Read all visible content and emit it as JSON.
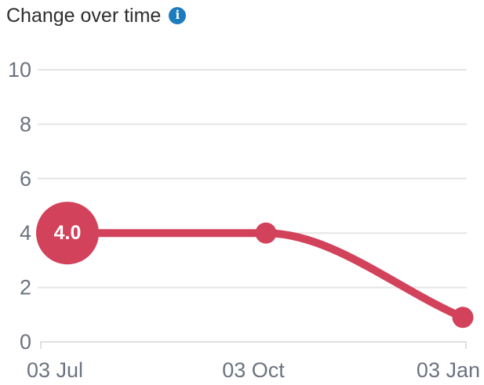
{
  "header": {
    "title": "Change over time",
    "info_icon_glyph": "i"
  },
  "colors": {
    "line": "#d2425b",
    "point": "#d2425b",
    "bubble_label": "#ffffff",
    "grid": "#e5e5e5",
    "axis_domain": "#e0e0e0",
    "axis_tick": "#dcdcdc",
    "axis_text": "#6b7380",
    "title_text": "#2e2e2e",
    "info_blue": "#1d7cbe"
  },
  "chart_data": {
    "type": "line",
    "title": "Change over time",
    "x": [
      "03 Jul",
      "03 Oct",
      "03 Jan"
    ],
    "values": [
      4.0,
      4.0,
      0.9
    ],
    "point_label": "4.0",
    "labeled_point_index": 0,
    "ylim": [
      0,
      10
    ],
    "yticks": [
      0,
      2,
      4,
      6,
      8,
      10
    ],
    "xlabel": "",
    "ylabel": "",
    "grid": "horizontal",
    "legend": "none"
  }
}
